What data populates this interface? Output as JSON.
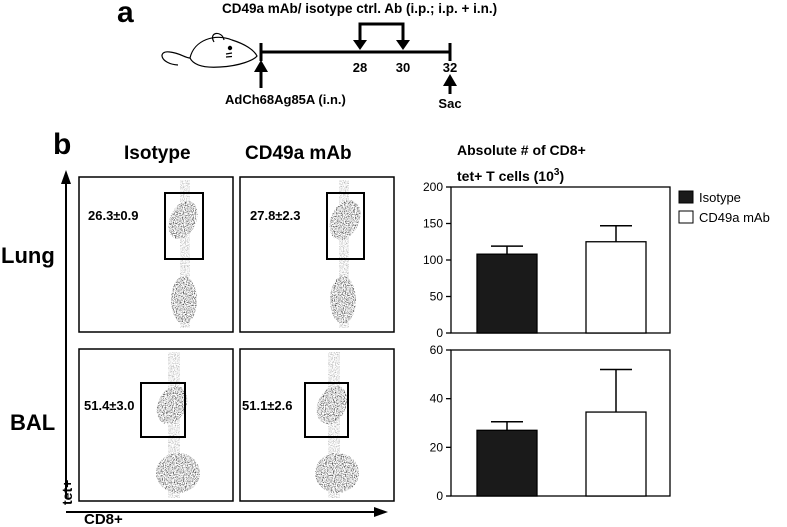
{
  "panel_a": {
    "letter": "a",
    "treatment_label": "CD49a mAb/ isotype ctrl. Ab (i.p.; i.p. + i.n.)",
    "timeline_days": [
      "28",
      "30",
      "32"
    ],
    "infection_label": "AdCh68Ag85A (i.n.)",
    "sacrifice_label": "Sac"
  },
  "panel_b": {
    "letter": "b",
    "column_headers": [
      "Isotype",
      "CD49a mAb"
    ],
    "row_labels": [
      "Lung",
      "BAL"
    ],
    "y_axis_label": "tet+",
    "x_axis_label": "CD8+",
    "gate_values": [
      [
        "26.3±0.9",
        "27.8±2.3"
      ],
      [
        "51.4±3.0",
        "51.1±2.6"
      ]
    ]
  },
  "chart_data": [
    {
      "type": "bar",
      "title": "Absolute # of CD8+ tet+ T cells (10³)",
      "title_line1": "Absolute # of CD8+",
      "title_line2_main": "tet+ T cells (10",
      "title_line2_sup": "3",
      "title_line2_end": ")",
      "categories": [
        "Isotype",
        "CD49a mAb"
      ],
      "values": [
        108,
        125
      ],
      "errors": [
        11,
        22
      ],
      "ylim": [
        0,
        200
      ],
      "yticks": [
        "0",
        "50",
        "100",
        "150",
        "200"
      ],
      "colors": [
        "#1a1a1a",
        "#ffffff"
      ],
      "legend": [
        "Isotype",
        "CD49a mAb"
      ],
      "legend_position": "top-right"
    },
    {
      "type": "bar",
      "categories": [
        "Isotype",
        "CD49a mAb"
      ],
      "values": [
        27,
        34.5
      ],
      "errors": [
        3.5,
        17.5
      ],
      "ylim": [
        0,
        60
      ],
      "yticks": [
        "0",
        "20",
        "40",
        "60"
      ],
      "colors": [
        "#1a1a1a",
        "#ffffff"
      ]
    }
  ]
}
